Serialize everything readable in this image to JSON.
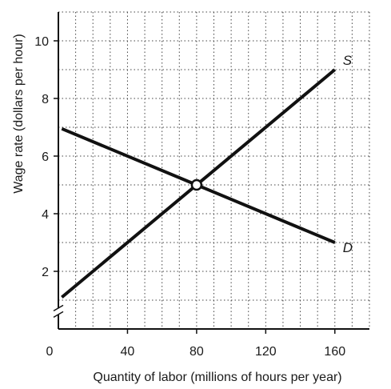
{
  "chart_data": {
    "type": "line",
    "title": "",
    "xlabel": "Quantity of labor (millions of hours per year)",
    "ylabel": "Wage rate (dollars per hour)",
    "xlim": [
      0,
      180
    ],
    "ylim": [
      0,
      11
    ],
    "origin_label": "0",
    "x_ticks": [
      40,
      80,
      120,
      160
    ],
    "y_ticks": [
      2,
      4,
      6,
      8,
      10
    ],
    "x_tick_labels": [
      "40",
      "80",
      "120",
      "160"
    ],
    "y_tick_labels": [
      "2",
      "4",
      "6",
      "8",
      "10"
    ],
    "grid": true,
    "grid_style": "dotted",
    "grid_step_x": 10,
    "grid_step_y": 1,
    "y_axis_break": true,
    "series": [
      {
        "name": "S",
        "x": [
          0,
          80,
          160
        ],
        "y": [
          1,
          5,
          9
        ]
      },
      {
        "name": "D",
        "x": [
          0,
          80,
          160
        ],
        "y": [
          7,
          5,
          3
        ]
      }
    ],
    "equilibrium": {
      "x": 80,
      "y": 5
    },
    "colors": {
      "line": "#111111",
      "grid": "#444444",
      "marker_fill": "#ffffff"
    }
  }
}
